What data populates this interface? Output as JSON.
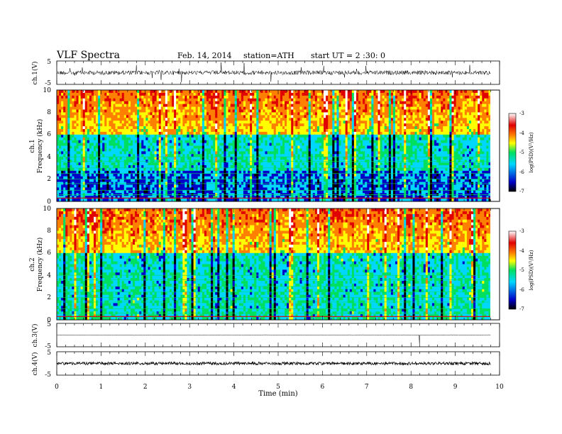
{
  "header": {
    "title": "VLF Spectra",
    "date": "Feb. 14, 2014",
    "station": "station=ATH",
    "start": "start UT = 2 :30: 0"
  },
  "chart_data": [
    {
      "type": "line",
      "name": "ch1-waveform",
      "ylabel": "ch.1(V)",
      "ylim": [
        -5,
        5
      ],
      "yticks": [
        "5",
        "-5"
      ]
    },
    {
      "type": "heatmap",
      "name": "ch1-spectrogram",
      "ylabel_line1": "ch.1",
      "ylabel_line2": "Frequency (kHz)",
      "ylim": [
        0,
        10
      ],
      "yticks": [
        "0",
        "2",
        "4",
        "6",
        "8",
        "10"
      ],
      "colorbar": {
        "label": "log(PSD)(V²/Hz)",
        "range": [
          -7,
          -3
        ],
        "ticks": [
          "-3",
          "-4",
          "-5",
          "-6",
          "-7"
        ],
        "colors": [
          "#000000",
          "#0000c8",
          "#00d7ff",
          "#00e060",
          "#ffff00",
          "#ff8000",
          "#e00000",
          "#ffffff"
        ]
      }
    },
    {
      "type": "heatmap",
      "name": "ch2-spectrogram",
      "ylabel_line1": "ch.2",
      "ylabel_line2": "Frequency (kHz)",
      "ylim": [
        0,
        10
      ],
      "yticks": [
        "0",
        "2",
        "4",
        "6",
        "8",
        "10"
      ],
      "colorbar": {
        "label": "log(PSD)(V²/Hz)",
        "range": [
          -7,
          -3
        ],
        "ticks": [
          "-3",
          "-4",
          "-5",
          "-6",
          "-7"
        ],
        "colors": [
          "#000000",
          "#0000c8",
          "#00d7ff",
          "#00e060",
          "#ffff00",
          "#ff8000",
          "#e00000",
          "#ffffff"
        ]
      }
    },
    {
      "type": "line",
      "name": "ch3-waveform",
      "ylabel": "ch.3(V)",
      "ylim": [
        -5,
        5
      ],
      "yticks": [
        "5",
        "-5"
      ]
    },
    {
      "type": "line",
      "name": "ch4-waveform",
      "ylabel": "ch.4(V)",
      "ylim": [
        -5,
        5
      ],
      "yticks": [
        "5",
        "-5"
      ]
    }
  ],
  "xaxis": {
    "label": "Time (min)",
    "range": [
      0,
      10
    ],
    "ticks": [
      "0",
      "1",
      "2",
      "3",
      "4",
      "5",
      "6",
      "7",
      "8",
      "9",
      "10"
    ],
    "data_end": 9.8
  }
}
